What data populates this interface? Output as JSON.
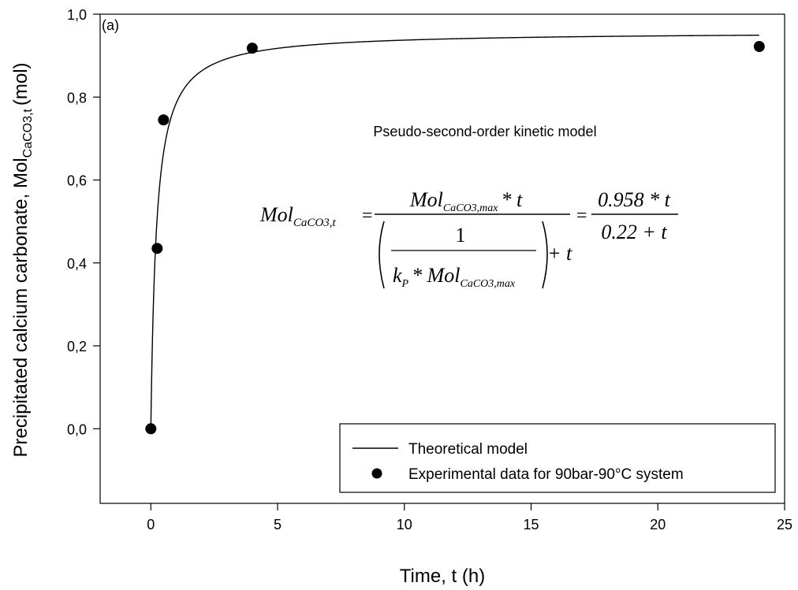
{
  "chart_data": {
    "type": "scatter",
    "panel_label": "(a)",
    "xlabel": "Time, t (h)",
    "ylabel": "Precipitated calcium carbonate, Mol",
    "ylabel_subscript": "CaCO3,t",
    "ylabel_unit": "(mol)",
    "xlim": [
      -2,
      25
    ],
    "ylim": [
      -0.18,
      1.0
    ],
    "x_ticks": [
      0,
      5,
      10,
      15,
      20,
      25
    ],
    "x_tick_labels": [
      "0",
      "5",
      "10",
      "15",
      "20",
      "25"
    ],
    "y_ticks": [
      0.0,
      0.2,
      0.4,
      0.6,
      0.8,
      1.0
    ],
    "y_tick_labels": [
      "0,0",
      "0,2",
      "0,4",
      "0,6",
      "0,8",
      "1,0"
    ],
    "grid": false,
    "legend_position": "bottom-right",
    "series": [
      {
        "name": "Theoretical model",
        "kind": "line",
        "color": "#000000",
        "model": {
          "qmax": 0.958,
          "k": 0.22,
          "t_start": 0,
          "t_end": 24
        }
      },
      {
        "name": "Experimental data for 90bar-90°C system",
        "kind": "scatter",
        "color": "#000000",
        "x": [
          0,
          0.25,
          0.5,
          4,
          24
        ],
        "y": [
          0.0,
          0.435,
          0.745,
          0.918,
          0.922
        ]
      }
    ],
    "annotation": {
      "title": "Pseudo-second-order kinetic model",
      "equation": {
        "lhs_base": "Mol",
        "lhs_sub": "CaCO3,t",
        "eq": "=",
        "num1_base": "Mol",
        "num1_sub": "CaCO3,max",
        "num1_tail": "* t",
        "den1_one": "1",
        "den1_k": "k",
        "den1_k_sub": "P",
        "den1_star_mol": "* Mol",
        "den1_sub": "CaCO3,max",
        "den1_tail": "+ t",
        "num2": "0.958 * t",
        "den2": "0.22 + t"
      }
    }
  }
}
